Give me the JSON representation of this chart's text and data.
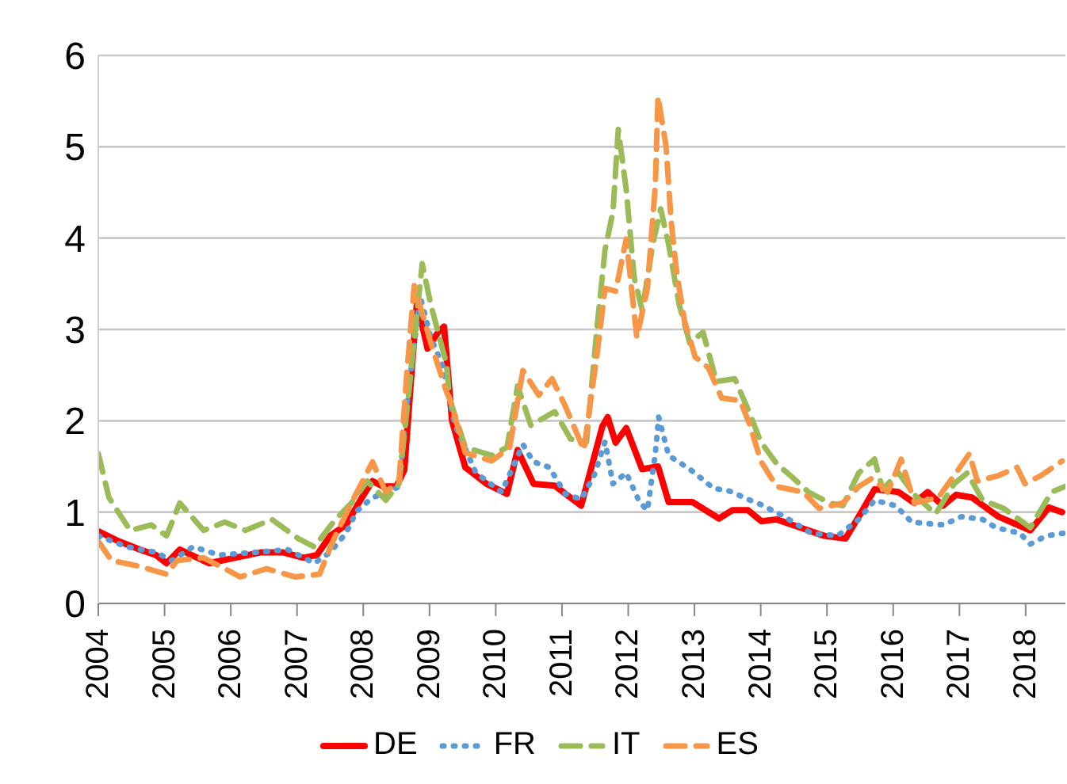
{
  "chart_data": {
    "type": "line",
    "xlim": [
      2004,
      2018.6
    ],
    "xticks": [
      2004,
      2005,
      2006,
      2007,
      2008,
      2009,
      2010,
      2011,
      2012,
      2013,
      2014,
      2015,
      2016,
      2017,
      2018
    ],
    "ylim": [
      0,
      6
    ],
    "yticks": [
      0,
      1,
      2,
      3,
      4,
      5,
      6
    ],
    "grid": "y",
    "legend": "bottom",
    "marker": "none",
    "series": [
      {
        "name": "DE",
        "color": "#ff0000",
        "line_style": "solid",
        "x": [
          2004.0,
          2004.31,
          2004.63,
          2004.87,
          2005.03,
          2005.23,
          2005.67,
          2006.06,
          2006.46,
          2006.78,
          2007.1,
          2007.3,
          2007.5,
          2007.74,
          2007.98,
          2008.14,
          2008.3,
          2008.5,
          2008.62,
          2008.7,
          2008.81,
          2008.97,
          2009.13,
          2009.22,
          2009.34,
          2009.54,
          2009.86,
          2010.17,
          2010.33,
          2010.57,
          2010.89,
          2011.29,
          2011.61,
          2011.69,
          2011.81,
          2011.97,
          2012.21,
          2012.45,
          2012.61,
          2012.97,
          2013.37,
          2013.57,
          2013.81,
          2014.01,
          2014.24,
          2014.96,
          2015.28,
          2015.48,
          2015.72,
          2016.08,
          2016.32,
          2016.52,
          2016.75,
          2016.95,
          2017.19,
          2017.59,
          2018.07,
          2018.35,
          2018.55
        ],
        "values": [
          0.79,
          0.68,
          0.59,
          0.53,
          0.44,
          0.59,
          0.44,
          0.5,
          0.56,
          0.56,
          0.5,
          0.53,
          0.74,
          0.86,
          1.16,
          1.34,
          1.28,
          1.28,
          1.46,
          2.24,
          3.3,
          2.79,
          2.97,
          3.03,
          2.0,
          1.49,
          1.31,
          1.2,
          1.68,
          1.31,
          1.29,
          1.07,
          1.94,
          2.04,
          1.76,
          1.92,
          1.47,
          1.5,
          1.11,
          1.11,
          0.93,
          1.02,
          1.02,
          0.9,
          0.92,
          0.74,
          0.71,
          0.95,
          1.25,
          1.22,
          1.1,
          1.22,
          1.07,
          1.19,
          1.16,
          0.95,
          0.8,
          1.05,
          1.0
        ]
      },
      {
        "name": "FR",
        "color": "#5b9bd5",
        "line_style": "dotted",
        "x": [
          2004.0,
          2004.43,
          2004.87,
          2005.11,
          2005.43,
          2005.83,
          2006.38,
          2006.86,
          2007.26,
          2007.5,
          2007.74,
          2007.9,
          2008.14,
          2008.38,
          2008.54,
          2008.66,
          2008.86,
          2009.02,
          2009.2,
          2009.38,
          2009.7,
          2010.09,
          2010.41,
          2010.57,
          2010.81,
          2011.05,
          2011.29,
          2011.49,
          2011.65,
          2011.77,
          2011.97,
          2012.17,
          2012.29,
          2012.41,
          2012.46,
          2012.61,
          2012.93,
          2013.29,
          2013.53,
          2013.81,
          2014.01,
          2014.36,
          2014.76,
          2015.16,
          2015.48,
          2015.72,
          2016.04,
          2016.28,
          2016.76,
          2017.03,
          2017.35,
          2017.55,
          2017.91,
          2018.07,
          2018.31,
          2018.59
        ],
        "values": [
          0.74,
          0.62,
          0.56,
          0.47,
          0.62,
          0.53,
          0.56,
          0.59,
          0.44,
          0.56,
          0.77,
          1.01,
          1.16,
          1.22,
          1.28,
          2.18,
          3.36,
          2.91,
          2.6,
          1.96,
          1.43,
          1.22,
          1.74,
          1.55,
          1.49,
          1.2,
          1.14,
          1.41,
          1.77,
          1.31,
          1.43,
          1.11,
          1.02,
          1.65,
          2.04,
          1.62,
          1.47,
          1.26,
          1.23,
          1.14,
          1.08,
          0.95,
          0.77,
          0.74,
          0.92,
          1.13,
          1.07,
          0.89,
          0.86,
          0.95,
          0.92,
          0.83,
          0.77,
          0.65,
          0.74,
          0.77
        ]
      },
      {
        "name": "IT",
        "color": "#9bbb59",
        "line_style": "dashed",
        "x": [
          2004.0,
          2004.16,
          2004.48,
          2004.8,
          2005.03,
          2005.23,
          2005.59,
          2005.91,
          2006.22,
          2006.62,
          2007.02,
          2007.26,
          2007.58,
          2007.82,
          2008.06,
          2008.34,
          2008.54,
          2008.66,
          2008.89,
          2009.02,
          2009.26,
          2009.3,
          2009.54,
          2009.94,
          2010.17,
          2010.33,
          2010.53,
          2010.89,
          2011.13,
          2011.37,
          2011.53,
          2011.65,
          2011.77,
          2011.85,
          2011.97,
          2012.09,
          2012.21,
          2012.37,
          2012.49,
          2012.61,
          2012.77,
          2012.93,
          2013.13,
          2013.33,
          2013.61,
          2013.84,
          2014.0,
          2014.24,
          2014.48,
          2014.72,
          2015.04,
          2015.24,
          2015.48,
          2015.72,
          2015.84,
          2016.08,
          2016.32,
          2016.64,
          2016.92,
          2017.12,
          2017.35,
          2017.67,
          2018.07,
          2018.39,
          2018.59
        ],
        "values": [
          1.64,
          1.16,
          0.8,
          0.86,
          0.74,
          1.1,
          0.8,
          0.89,
          0.8,
          0.92,
          0.71,
          0.62,
          0.92,
          1.1,
          1.34,
          1.13,
          1.31,
          2.12,
          3.72,
          3.27,
          2.61,
          2.25,
          1.71,
          1.62,
          1.71,
          2.38,
          1.95,
          2.1,
          1.8,
          1.77,
          3.03,
          3.87,
          4.29,
          5.19,
          4.53,
          3.57,
          3.21,
          3.93,
          4.32,
          3.93,
          3.27,
          2.85,
          2.97,
          2.43,
          2.46,
          2.07,
          1.77,
          1.53,
          1.38,
          1.22,
          1.1,
          1.07,
          1.43,
          1.58,
          1.25,
          1.43,
          1.19,
          0.98,
          1.31,
          1.43,
          1.13,
          1.04,
          0.83,
          1.22,
          1.28
        ]
      },
      {
        "name": "ES",
        "color": "#f79646",
        "line_style": "dashed",
        "x": [
          2004.0,
          2004.2,
          2004.6,
          2005.03,
          2005.19,
          2005.59,
          2005.99,
          2006.14,
          2006.54,
          2006.98,
          2007.34,
          2007.54,
          2007.82,
          2008.14,
          2008.34,
          2008.54,
          2008.66,
          2008.77,
          2009.02,
          2009.26,
          2009.3,
          2009.54,
          2009.94,
          2010.21,
          2010.41,
          2010.65,
          2010.85,
          2011.05,
          2011.33,
          2011.53,
          2011.65,
          2011.81,
          2011.97,
          2012.13,
          2012.29,
          2012.41,
          2012.45,
          2012.57,
          2012.65,
          2012.73,
          2012.85,
          2013.01,
          2013.21,
          2013.41,
          2013.69,
          2013.84,
          2014.0,
          2014.24,
          2014.64,
          2014.88,
          2015.24,
          2015.48,
          2015.68,
          2015.92,
          2016.12,
          2016.32,
          2016.68,
          2016.95,
          2017.15,
          2017.27,
          2017.59,
          2017.87,
          2017.99,
          2018.23,
          2018.55
        ],
        "values": [
          0.68,
          0.47,
          0.41,
          0.32,
          0.47,
          0.5,
          0.35,
          0.29,
          0.38,
          0.29,
          0.32,
          0.68,
          1.1,
          1.55,
          1.22,
          1.34,
          2.54,
          3.48,
          2.85,
          2.31,
          2.25,
          1.65,
          1.56,
          1.71,
          2.55,
          2.28,
          2.46,
          2.16,
          1.68,
          2.73,
          3.45,
          3.42,
          3.99,
          2.91,
          3.45,
          4.59,
          5.55,
          5.01,
          4.17,
          3.63,
          3.09,
          2.7,
          2.58,
          2.25,
          2.22,
          1.95,
          1.56,
          1.28,
          1.22,
          1.04,
          1.1,
          1.28,
          1.37,
          1.22,
          1.58,
          1.1,
          1.16,
          1.43,
          1.64,
          1.34,
          1.4,
          1.49,
          1.31,
          1.4,
          1.56
        ]
      }
    ]
  }
}
